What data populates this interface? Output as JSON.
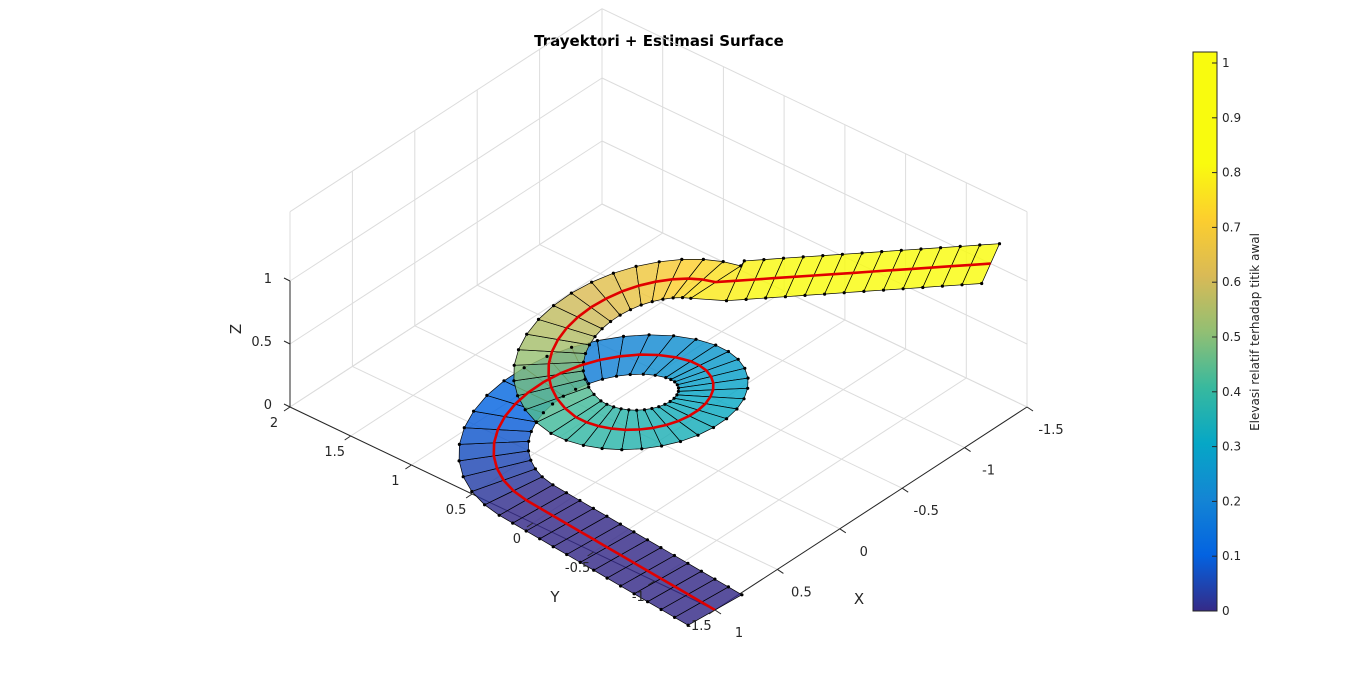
{
  "chart_data": {
    "type": "surface3d",
    "title": "Trayektori + Estimasi Surface",
    "xlabel": "X",
    "ylabel": "Y",
    "zlabel": "Z",
    "xlim": [
      -1.5,
      1
    ],
    "ylim": [
      -1.5,
      2
    ],
    "zlim": [
      0,
      1
    ],
    "xticks": [
      "-1.5",
      "-1",
      "-0.5",
      "0",
      "0.5",
      "1"
    ],
    "yticks": [
      "-1.5",
      "-1",
      "-0.5",
      "0",
      "0.5",
      "1",
      "1.5",
      "2"
    ],
    "zticks": [
      "0",
      "0.5",
      "1"
    ],
    "grid": true,
    "colormap": "parula",
    "colorbar": {
      "label": "Elevasi relatif terhadap titik awal",
      "ticks": [
        "0",
        "0.1",
        "0.2",
        "0.3",
        "0.4",
        "0.5",
        "0.6",
        "0.7",
        "0.8",
        "0.9",
        "1"
      ],
      "range": [
        0,
        1.02
      ]
    },
    "surface_color_range": [
      0,
      1
    ],
    "trajectory_color": "#e00000",
    "edge_color": "#000000",
    "path": {
      "segments": [
        {
          "kind": "line",
          "from": [
            1.0,
            -1.5
          ],
          "to": [
            0.86,
            0.2
          ],
          "z": [
            0,
            0
          ]
        },
        {
          "kind": "arc",
          "center": [
            0.2,
            0.2
          ],
          "radius": 0.66,
          "start_deg": 0,
          "end_deg": 180,
          "z": [
            0,
            0.25
          ]
        },
        {
          "kind": "arc",
          "center": [
            0.0,
            0.2
          ],
          "radius": 0.46,
          "start_deg": 180,
          "end_deg": 360,
          "z": [
            0.25,
            0.4
          ]
        },
        {
          "kind": "arc",
          "center": [
            -0.1,
            0.2
          ],
          "radius": 0.56,
          "start_deg": 0,
          "end_deg": 180,
          "z": [
            0.4,
            0.75
          ]
        },
        {
          "kind": "line",
          "from": [
            -0.66,
            0.2
          ],
          "to": [
            -1.5,
            -1.2
          ],
          "z": [
            0.75,
            1.0
          ]
        }
      ],
      "half_width": 0.2
    }
  }
}
